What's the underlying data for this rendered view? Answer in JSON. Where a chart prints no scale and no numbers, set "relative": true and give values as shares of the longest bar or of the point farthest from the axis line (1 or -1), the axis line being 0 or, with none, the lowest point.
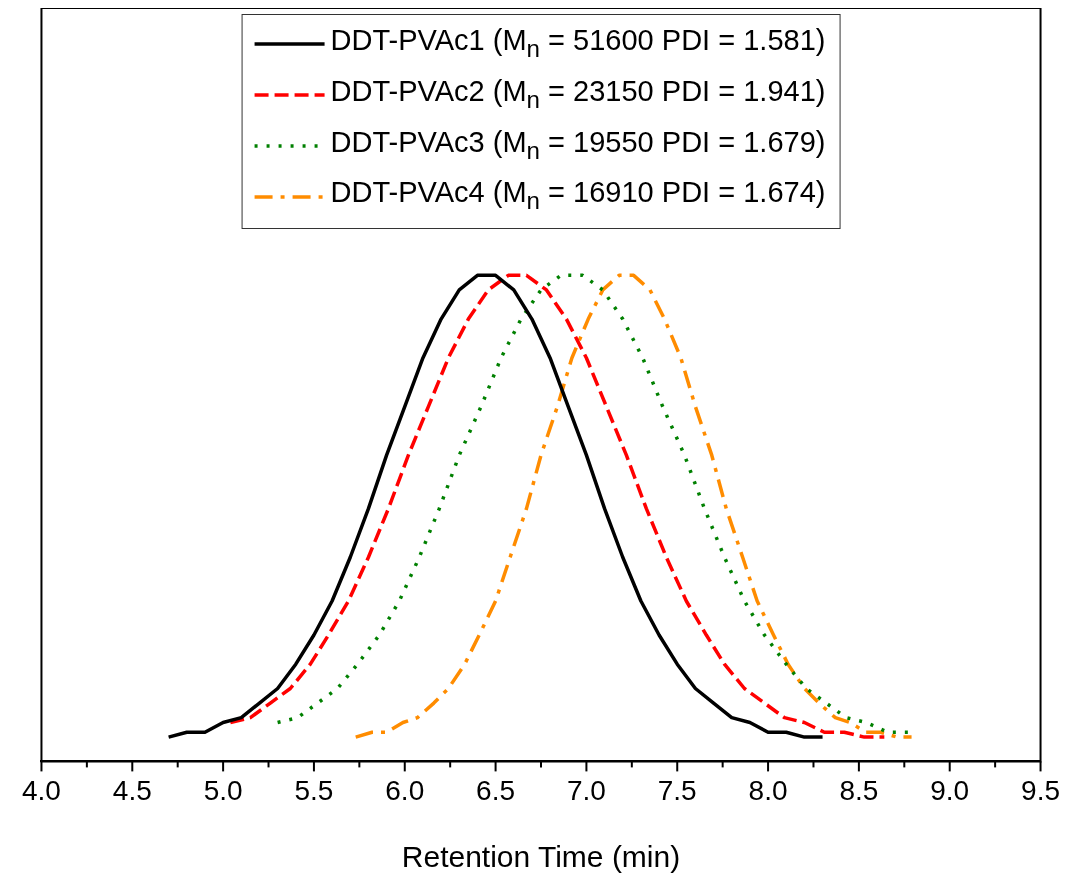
{
  "chart_data": {
    "type": "line",
    "xlabel": "Retention Time (min)",
    "relative": true,
    "legend": "top",
    "marker": "none",
    "grid": false,
    "xlim": [
      4.0,
      9.5
    ],
    "xticks": [
      {
        "value": 4,
        "label": "4.0"
      },
      {
        "value": 4.25,
        "label": null
      },
      {
        "value": 4.5,
        "label": "4.5"
      },
      {
        "value": 4.75,
        "label": null
      },
      {
        "value": 5,
        "label": "5.0"
      },
      {
        "value": 5.25,
        "label": null
      },
      {
        "value": 5.5,
        "label": "5.5"
      },
      {
        "value": 5.75,
        "label": null
      },
      {
        "value": 6,
        "label": "6.0"
      },
      {
        "value": 6.25,
        "label": null
      },
      {
        "value": 6.5,
        "label": "6.5"
      },
      {
        "value": 6.75,
        "label": null
      },
      {
        "value": 7,
        "label": "7.0"
      },
      {
        "value": 7.25,
        "label": null
      },
      {
        "value": 7.5,
        "label": "7.5"
      },
      {
        "value": 7.75,
        "label": null
      },
      {
        "value": 8,
        "label": "8.0"
      },
      {
        "value": 8.25,
        "label": null
      },
      {
        "value": 8.5,
        "label": "8.5"
      },
      {
        "value": 8.75,
        "label": null
      },
      {
        "value": 9,
        "label": "9.0"
      },
      {
        "value": 9.25,
        "label": null
      },
      {
        "value": 9.5,
        "label": "9.5"
      }
    ],
    "series": [
      {
        "name": "DDT-PVAc1 (M$_{n}$ = 51600 PDI = 1.581)",
        "color": "#000000",
        "line_style": "solid",
        "x": [
          4.7,
          4.8,
          4.9,
          5.0,
          5.1,
          5.2,
          5.3,
          5.4,
          5.5,
          5.6,
          5.7,
          5.8,
          5.9,
          6.0,
          6.1,
          6.2,
          6.3,
          6.4,
          6.45,
          6.5,
          6.6,
          6.7,
          6.8,
          6.9,
          7.0,
          7.1,
          7.2,
          7.3,
          7.4,
          7.5,
          7.6,
          7.7,
          7.8,
          7.9,
          8.0,
          8.1,
          8.2,
          8.3
        ],
        "values": [
          0.05,
          0.06,
          0.06,
          0.08,
          0.09,
          0.12,
          0.15,
          0.2,
          0.26,
          0.33,
          0.42,
          0.52,
          0.63,
          0.73,
          0.83,
          0.91,
          0.97,
          1,
          1,
          1,
          0.97,
          0.91,
          0.83,
          0.73,
          0.63,
          0.52,
          0.42,
          0.33,
          0.26,
          0.2,
          0.15,
          0.12,
          0.09,
          0.08,
          0.06,
          0.06,
          0.05,
          0.05
        ]
      },
      {
        "name": "DDT-PVAc2 (M$_{n}$ = 23150 PDI = 1.941)",
        "color": "#ff0000",
        "line_style": "dashed",
        "x": [
          5.04,
          5.15,
          5.26,
          5.37,
          5.48,
          5.58,
          5.69,
          5.8,
          5.91,
          6.02,
          6.13,
          6.24,
          6.35,
          6.46,
          6.57,
          6.62,
          6.67,
          6.78,
          6.89,
          7.0,
          7.11,
          7.22,
          7.33,
          7.44,
          7.55,
          7.66,
          7.76,
          7.87,
          7.98,
          8.09,
          8.2,
          8.31,
          8.42,
          8.53,
          8.64
        ],
        "values": [
          0.08,
          0.09,
          0.12,
          0.15,
          0.2,
          0.26,
          0.33,
          0.42,
          0.52,
          0.63,
          0.73,
          0.83,
          0.91,
          0.97,
          1,
          1,
          1,
          0.97,
          0.91,
          0.83,
          0.73,
          0.63,
          0.52,
          0.42,
          0.33,
          0.26,
          0.2,
          0.15,
          0.12,
          0.09,
          0.08,
          0.06,
          0.06,
          0.05,
          0.05
        ]
      },
      {
        "name": "DDT-PVAc3 (M$_{n}$ = 19550 PDI = 1.679)",
        "color": "#008000",
        "line_style": "dotted",
        "x": [
          5.3,
          5.41,
          5.52,
          5.63,
          5.74,
          5.86,
          5.97,
          6.08,
          6.19,
          6.3,
          6.42,
          6.53,
          6.64,
          6.75,
          6.86,
          6.92,
          6.98,
          7.09,
          7.2,
          7.31,
          7.42,
          7.54,
          7.65,
          7.76,
          7.87,
          7.98,
          8.1,
          8.21,
          8.32,
          8.43,
          8.54,
          8.66,
          8.77
        ],
        "values": [
          0.08,
          0.09,
          0.12,
          0.15,
          0.2,
          0.26,
          0.33,
          0.42,
          0.52,
          0.63,
          0.73,
          0.83,
          0.91,
          0.97,
          1,
          1,
          1,
          0.97,
          0.91,
          0.83,
          0.73,
          0.63,
          0.52,
          0.42,
          0.33,
          0.26,
          0.2,
          0.15,
          0.12,
          0.09,
          0.08,
          0.06,
          0.06
        ]
      },
      {
        "name": "DDT-PVAc4 (M$_{n}$ = 16910 PDI = 1.674)",
        "color": "#ff8c00",
        "line_style": "dashdot",
        "x": [
          5.73,
          5.82,
          5.9,
          5.99,
          6.07,
          6.16,
          6.24,
          6.33,
          6.41,
          6.5,
          6.58,
          6.67,
          6.75,
          6.84,
          6.92,
          7.01,
          7.09,
          7.18,
          7.22,
          7.26,
          7.35,
          7.43,
          7.52,
          7.6,
          7.69,
          7.77,
          7.86,
          7.94,
          8.03,
          8.11,
          8.2,
          8.28,
          8.37,
          8.45,
          8.54,
          8.62,
          8.71,
          8.79
        ],
        "values": [
          0.05,
          0.06,
          0.06,
          0.08,
          0.09,
          0.12,
          0.15,
          0.2,
          0.26,
          0.33,
          0.42,
          0.52,
          0.63,
          0.73,
          0.83,
          0.91,
          0.97,
          1,
          1,
          1,
          0.97,
          0.91,
          0.83,
          0.73,
          0.63,
          0.52,
          0.42,
          0.33,
          0.26,
          0.2,
          0.15,
          0.12,
          0.09,
          0.08,
          0.06,
          0.06,
          0.05,
          0.05
        ]
      }
    ]
  }
}
